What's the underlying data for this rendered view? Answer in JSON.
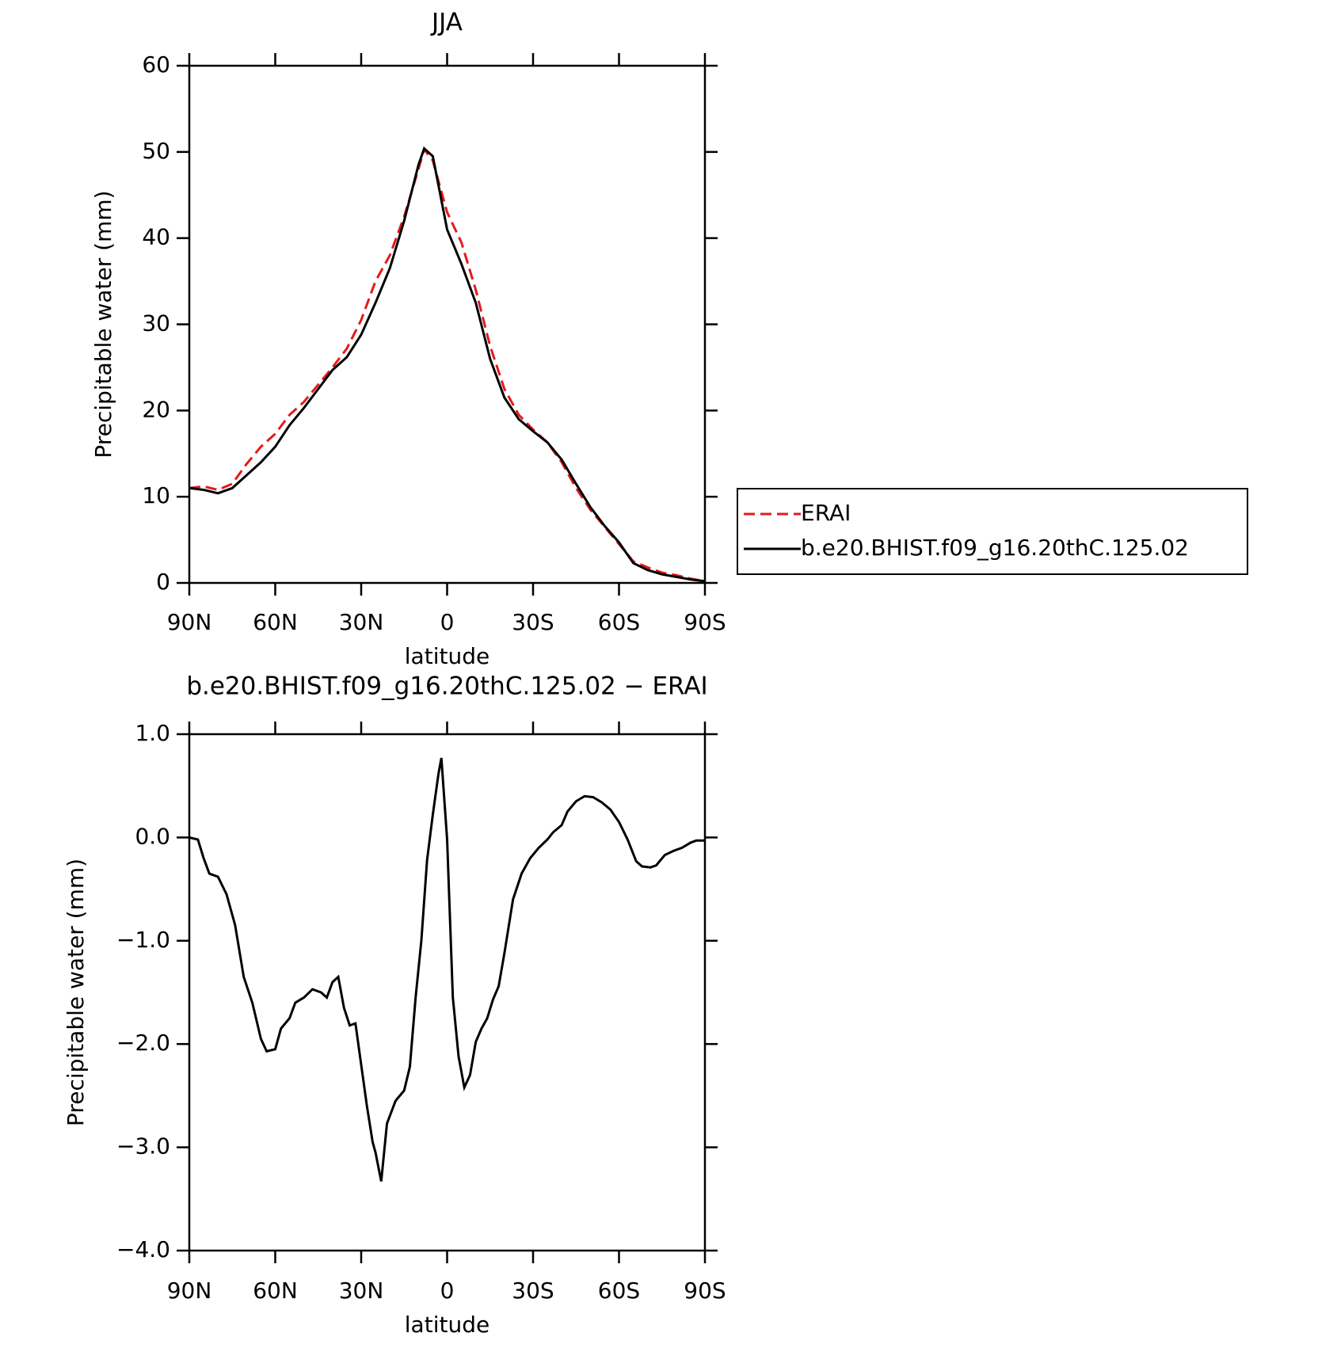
{
  "chart_data": [
    {
      "type": "line",
      "title": "JJA",
      "xlabel": "latitude",
      "ylabel": "Precipitable water (mm)",
      "x": [
        90,
        85,
        80,
        75,
        70,
        65,
        60,
        55,
        50,
        45,
        40,
        35,
        30,
        25,
        20,
        15,
        10,
        8,
        5,
        0,
        -5,
        -10,
        -15,
        -20,
        -25,
        -30,
        -35,
        -40,
        -45,
        -50,
        -55,
        -60,
        -65,
        -70,
        -75,
        -80,
        -85,
        -90
      ],
      "series": [
        {
          "name": "ERAI",
          "color": "#e41a1c",
          "dash": "dashed",
          "values": [
            11,
            11.2,
            10.8,
            11.5,
            13.8,
            15.8,
            17.3,
            19.5,
            21,
            23,
            25,
            27.2,
            30.5,
            35,
            38,
            42.5,
            48,
            50.3,
            49,
            43,
            39.5,
            34,
            27.5,
            22.5,
            19.5,
            17.8,
            16.3,
            14,
            11,
            8.5,
            6.5,
            4.5,
            2.5,
            1.8,
            1.2,
            0.9,
            0.5,
            0.2
          ]
        },
        {
          "name": "b.e20.BHIST.f09_g16.20thC.125.02",
          "color": "#000000",
          "dash": "solid",
          "values": [
            11,
            10.8,
            10.4,
            11,
            12.5,
            14,
            15.8,
            18.3,
            20.3,
            22.5,
            24.7,
            26.2,
            28.8,
            32.5,
            36.5,
            42,
            48.5,
            50.4,
            49.5,
            41,
            37,
            32.5,
            26,
            21.5,
            19,
            17.6,
            16.3,
            14.3,
            11.5,
            8.8,
            6.6,
            4.7,
            2.3,
            1.5,
            1,
            0.7,
            0.4,
            0.2
          ]
        }
      ],
      "xlim": [
        90,
        -90
      ],
      "xticks": [
        {
          "value": 90,
          "label": "90N"
        },
        {
          "value": 60,
          "label": "60N"
        },
        {
          "value": 30,
          "label": "30N"
        },
        0,
        {
          "value": -30,
          "label": "30S"
        },
        {
          "value": -60,
          "label": "60S"
        },
        {
          "value": -90,
          "label": "90S"
        }
      ],
      "ylim": [
        0,
        60
      ],
      "yticks": [
        0,
        10,
        20,
        30,
        40,
        50,
        60
      ],
      "legend": "right"
    },
    {
      "type": "line",
      "title": "b.e20.BHIST.f09_g16.20thC.125.02 − ERAI",
      "xlabel": "latitude",
      "ylabel": "Precipitable water (mm)",
      "x": [
        90,
        87,
        85,
        83,
        80,
        77,
        74,
        71,
        68,
        65,
        63,
        60,
        58,
        55,
        53,
        50,
        47,
        44,
        42,
        40,
        38,
        36,
        34,
        32,
        30,
        28,
        26,
        25,
        23,
        21,
        18,
        15,
        13,
        11,
        9,
        7,
        5,
        3,
        2,
        0,
        -2,
        -4,
        -6,
        -8,
        -10,
        -12,
        -14,
        -16,
        -18,
        -20,
        -23,
        -26,
        -29,
        -32,
        -35,
        -37,
        -40,
        -42,
        -45,
        -48,
        -51,
        -54,
        -57,
        -60,
        -63,
        -66,
        -68,
        -71,
        -73,
        -76,
        -79,
        -82,
        -85,
        -87,
        -90
      ],
      "series": [
        {
          "name": "b.e20.BHIST.f09_g16.20thC.125.02 − ERAI",
          "color": "#000000",
          "dash": "solid",
          "values": [
            0,
            -0.02,
            -0.2,
            -0.35,
            -0.38,
            -0.55,
            -0.85,
            -1.35,
            -1.6,
            -1.95,
            -2.07,
            -2.05,
            -1.85,
            -1.75,
            -1.6,
            -1.55,
            -1.47,
            -1.5,
            -1.55,
            -1.4,
            -1.35,
            -1.65,
            -1.82,
            -1.8,
            -2.2,
            -2.6,
            -2.95,
            -3.05,
            -3.33,
            -2.77,
            -2.55,
            -2.45,
            -2.22,
            -1.55,
            -1,
            -0.22,
            0.22,
            0.62,
            0.77,
            -0.02,
            -1.55,
            -2.12,
            -2.42,
            -2.3,
            -1.98,
            -1.85,
            -1.75,
            -1.57,
            -1.44,
            -1.12,
            -0.6,
            -0.35,
            -0.2,
            -0.1,
            -0.02,
            0.05,
            0.12,
            0.25,
            0.35,
            0.4,
            0.39,
            0.34,
            0.27,
            0.15,
            -0.02,
            -0.23,
            -0.28,
            -0.29,
            -0.27,
            -0.17,
            -0.13,
            -0.1,
            -0.05,
            -0.03,
            -0.03
          ]
        }
      ],
      "xlim": [
        90,
        -90
      ],
      "xticks": [
        {
          "value": 90,
          "label": "90N"
        },
        {
          "value": 60,
          "label": "60N"
        },
        {
          "value": 30,
          "label": "30N"
        },
        0,
        {
          "value": -30,
          "label": "30S"
        },
        {
          "value": -60,
          "label": "60S"
        },
        {
          "value": -90,
          "label": "90S"
        }
      ],
      "ylim": [
        -4,
        1
      ],
      "yticks": [
        {
          "value": -4,
          "label": "−4.0"
        },
        {
          "value": -3,
          "label": "−3.0"
        },
        {
          "value": -2,
          "label": "−2.0"
        },
        {
          "value": -1,
          "label": "−1.0"
        },
        {
          "value": 0,
          "label": "0.0"
        },
        {
          "value": 1,
          "label": "1.0"
        }
      ]
    }
  ]
}
